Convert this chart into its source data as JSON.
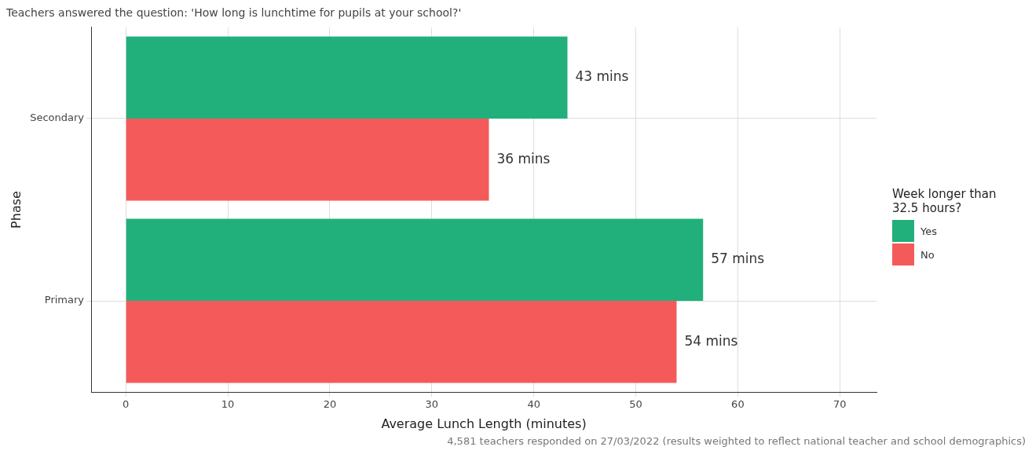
{
  "chart_data": {
    "type": "bar",
    "orientation": "horizontal",
    "subtitle": "Teachers answered the question: 'How long is lunchtime for pupils at your school?'",
    "xlabel": "Average Lunch Length (minutes)",
    "ylabel": "Phase",
    "legend_title": "Week longer than 32.5 hours?",
    "legend": "right",
    "grid": true,
    "categories": [
      "Secondary",
      "Primary"
    ],
    "series": [
      {
        "name": "Yes",
        "color": "#21b07c",
        "values": [
          43.3,
          56.6
        ],
        "value_labels": [
          "43 mins",
          "57 mins"
        ]
      },
      {
        "name": "No",
        "color": "#f55a5a",
        "values": [
          35.6,
          54.0
        ],
        "value_labels": [
          "36 mins",
          "54 mins"
        ]
      }
    ],
    "xlim": [
      -3.4,
      73.6
    ],
    "xticks": [
      0,
      10,
      20,
      30,
      40,
      50,
      60,
      70
    ],
    "annotations": [
      "4,581 teachers responded on 27/03/2022 (results weighted to reflect national teacher and school demographics)"
    ]
  }
}
